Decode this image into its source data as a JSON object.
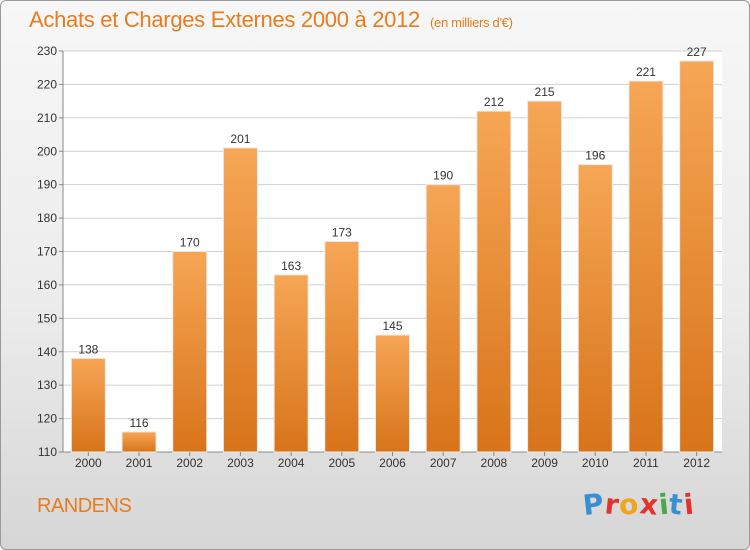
{
  "chart_data": {
    "type": "bar",
    "title": "Achats et Charges Externes 2000 à 2012",
    "subtitle": "(en milliers d'€)",
    "categories": [
      "2000",
      "2001",
      "2002",
      "2003",
      "2004",
      "2005",
      "2006",
      "2007",
      "2008",
      "2009",
      "2010",
      "2011",
      "2012"
    ],
    "values": [
      138,
      116,
      170,
      201,
      163,
      173,
      145,
      190,
      212,
      215,
      196,
      221,
      227
    ],
    "ylim": [
      110,
      230
    ],
    "yticks": [
      110,
      120,
      130,
      140,
      150,
      160,
      170,
      180,
      190,
      200,
      210,
      220,
      230
    ],
    "grid": true,
    "colors": {
      "bar_top": "#f6a655",
      "bar_bottom": "#d8741a",
      "accent": "#e87c1e"
    }
  },
  "footer": {
    "location": "RANDENS",
    "brand_letters": [
      {
        "ch": "P",
        "color": "#3b8fd1"
      },
      {
        "ch": "r",
        "color": "#e5322d"
      },
      {
        "ch": "o",
        "color": "#f2a41c"
      },
      {
        "ch": "x",
        "color": "#e5322d"
      },
      {
        "ch": "i",
        "color": "#4aa84a"
      },
      {
        "ch": "t",
        "color": "#3b8fd1"
      },
      {
        "ch": "i",
        "color": "#e5322d"
      }
    ]
  }
}
